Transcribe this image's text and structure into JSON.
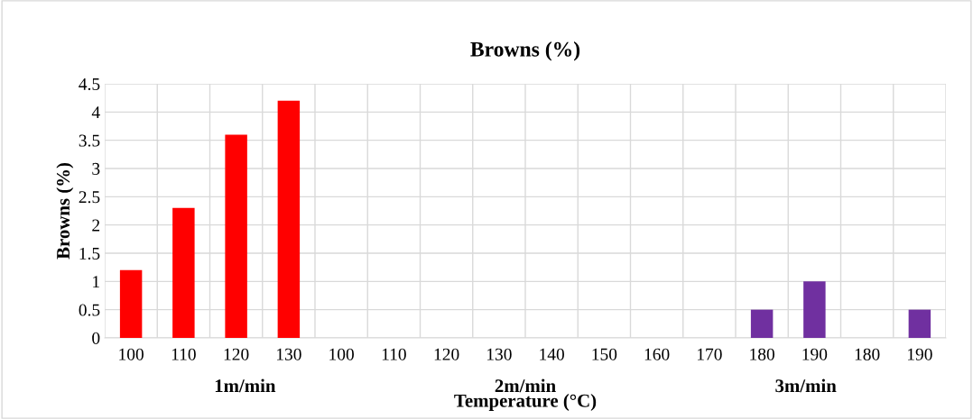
{
  "chart_data": {
    "type": "bar",
    "title": "Browns (%)",
    "xlabel": "Temperature (°C)",
    "ylabel": "Browns (%)",
    "categories": [
      "100",
      "110",
      "120",
      "130",
      "100",
      "110",
      "120",
      "130",
      "140",
      "150",
      "160",
      "170",
      "180",
      "190",
      "180",
      "190"
    ],
    "values": [
      1.2,
      2.3,
      3.6,
      4.2,
      0,
      0,
      0,
      0,
      0,
      0,
      0,
      0,
      0.5,
      1.0,
      0,
      0.5
    ],
    "colors": [
      "#ff0000",
      "#ff0000",
      "#ff0000",
      "#ff0000",
      "#ff0000",
      "#ff0000",
      "#ff0000",
      "#ff0000",
      "#ff0000",
      "#ff0000",
      "#ff0000",
      "#ff0000",
      "#7030a0",
      "#7030a0",
      "#7030a0",
      "#7030a0"
    ],
    "annotations": [
      "1m/min",
      "2m/min",
      "3m/min"
    ],
    "ylim": [
      0,
      4.5
    ],
    "yticks": [
      0,
      0.5,
      1,
      1.5,
      2,
      2.5,
      3,
      3.5,
      4,
      4.5
    ],
    "grid": true
  }
}
